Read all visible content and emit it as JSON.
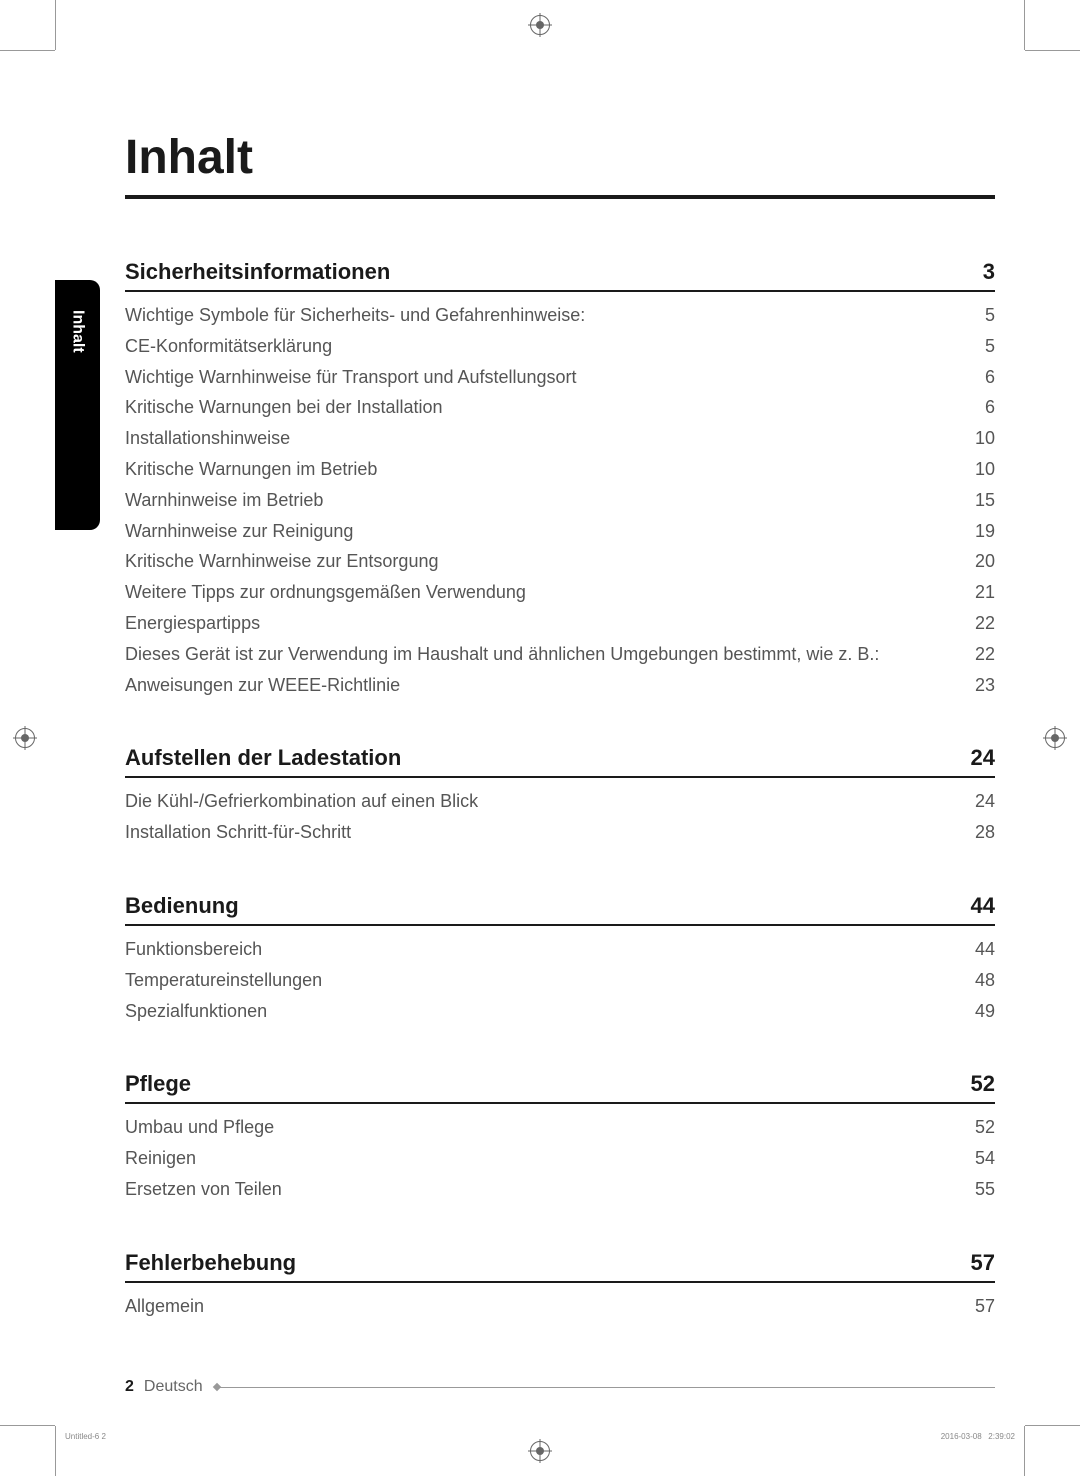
{
  "sidebar_label": "Inhalt",
  "title": "Inhalt",
  "sections": [
    {
      "title": "Sicherheitsinformationen",
      "page": "3",
      "items": [
        {
          "label": "Wichtige Symbole für Sicherheits- und Gefahrenhinweise:",
          "page": "5"
        },
        {
          "label": "CE-Konformitätserklärung",
          "page": "5"
        },
        {
          "label": "Wichtige Warnhinweise für Transport und Aufstellungsort",
          "page": "6"
        },
        {
          "label": "Kritische Warnungen bei der Installation",
          "page": "6"
        },
        {
          "label": "Installationshinweise",
          "page": "10"
        },
        {
          "label": "Kritische Warnungen im Betrieb",
          "page": "10"
        },
        {
          "label": "Warnhinweise im Betrieb",
          "page": "15"
        },
        {
          "label": "Warnhinweise zur Reinigung",
          "page": "19"
        },
        {
          "label": "Kritische Warnhinweise zur Entsorgung",
          "page": "20"
        },
        {
          "label": "Weitere Tipps zur ordnungsgemäßen Verwendung",
          "page": "21"
        },
        {
          "label": "Energiespartipps",
          "page": "22"
        },
        {
          "label": "Dieses Gerät ist zur Verwendung im Haushalt und ähnlichen Umgebungen bestimmt, wie z. B.:",
          "page": "22"
        },
        {
          "label": "Anweisungen zur WEEE-Richtlinie",
          "page": "23"
        }
      ]
    },
    {
      "title": "Aufstellen der Ladestation",
      "page": "24",
      "items": [
        {
          "label": "Die Kühl-/Gefrierkombination auf einen Blick",
          "page": "24"
        },
        {
          "label": "Installation Schritt-für-Schritt",
          "page": "28"
        }
      ]
    },
    {
      "title": "Bedienung",
      "page": "44",
      "items": [
        {
          "label": "Funktionsbereich",
          "page": "44"
        },
        {
          "label": "Temperatureinstellungen",
          "page": "48"
        },
        {
          "label": "Spezialfunktionen",
          "page": "49"
        }
      ]
    },
    {
      "title": "Pflege",
      "page": "52",
      "items": [
        {
          "label": "Umbau und Pflege",
          "page": "52"
        },
        {
          "label": "Reinigen",
          "page": "54"
        },
        {
          "label": "Ersetzen von Teilen",
          "page": "55"
        }
      ]
    },
    {
      "title": "Fehlerbehebung",
      "page": "57",
      "items": [
        {
          "label": "Allgemein",
          "page": "57"
        }
      ]
    }
  ],
  "footer": {
    "pagenum": "2",
    "lang": "Deutsch"
  },
  "print_info": {
    "left": "Untitled-6   2",
    "right": "2016-03-08     2:39:02"
  },
  "colors": {
    "text_dark": "#1a1a1a",
    "text_body": "#555555",
    "sidebar_bg": "#000000",
    "sidebar_text": "#ffffff",
    "crop_mark": "#999999"
  }
}
